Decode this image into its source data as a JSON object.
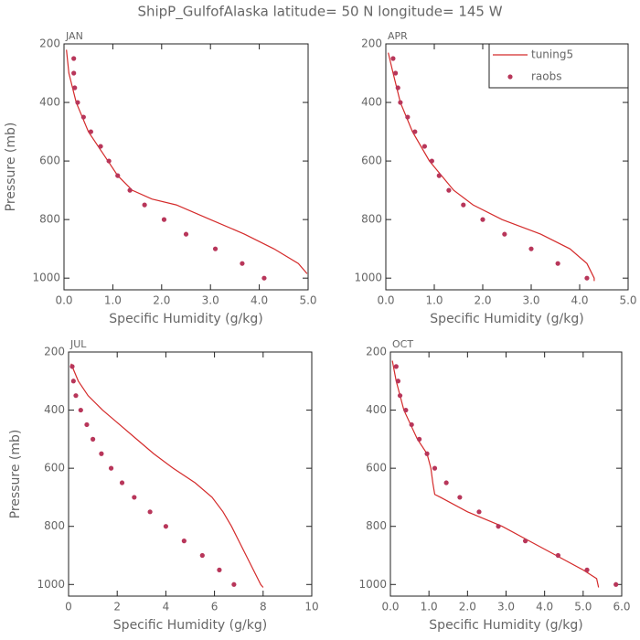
{
  "title": "ShipP_GulfofAlaska  latitude= 50 N longitude= 145 W",
  "chart_data": [
    {
      "type": "line",
      "title": "JAN",
      "xlabel": "Specific Humidity (g/kg)",
      "ylabel": "Pressure (mb)",
      "xlim": [
        0,
        5
      ],
      "xticks": [
        {
          "value": 0,
          "label": "0.0"
        },
        {
          "value": 1,
          "label": "1.0"
        },
        {
          "value": 2,
          "label": "2.0"
        },
        {
          "value": 3,
          "label": "3.0"
        },
        {
          "value": 4,
          "label": "4.0"
        },
        {
          "value": 5,
          "label": "5.0"
        }
      ],
      "ylim": [
        1040,
        200
      ],
      "yticks": [
        200,
        400,
        600,
        800,
        1000
      ],
      "series": [
        {
          "name": "tuning5",
          "kind": "line",
          "color": "#d42a2a",
          "x": [
            0.05,
            0.1,
            0.25,
            0.5,
            0.9,
            1.1,
            1.4,
            1.8,
            2.3,
            3.0,
            3.7,
            4.3,
            4.8,
            4.98
          ],
          "y": [
            220,
            300,
            400,
            500,
            600,
            650,
            700,
            730,
            750,
            800,
            850,
            900,
            950,
            985
          ]
        },
        {
          "name": "raobs",
          "kind": "scatter",
          "color": "#b8365a",
          "x": [
            0.2,
            0.2,
            0.22,
            0.28,
            0.4,
            0.55,
            0.75,
            0.92,
            1.1,
            1.35,
            1.65,
            2.05,
            2.5,
            3.1,
            3.65,
            4.1
          ],
          "y": [
            250,
            300,
            350,
            400,
            450,
            500,
            550,
            600,
            650,
            700,
            750,
            800,
            850,
            900,
            950,
            1000
          ]
        }
      ]
    },
    {
      "type": "line",
      "title": "APR",
      "xlabel": "Specific Humidity (g/kg)",
      "legend": "upper right",
      "xlim": [
        0,
        5
      ],
      "xticks": [
        {
          "value": 0,
          "label": "0.0"
        },
        {
          "value": 1,
          "label": "1.0"
        },
        {
          "value": 2,
          "label": "2.0"
        },
        {
          "value": 3,
          "label": "3.0"
        },
        {
          "value": 4,
          "label": "4.0"
        },
        {
          "value": 5,
          "label": "5.0"
        }
      ],
      "ylim": [
        1040,
        200
      ],
      "yticks": [
        200,
        400,
        600,
        800,
        1000
      ],
      "series": [
        {
          "name": "tuning5",
          "kind": "line",
          "color": "#d42a2a",
          "x": [
            0.05,
            0.15,
            0.3,
            0.55,
            0.9,
            1.4,
            1.8,
            2.4,
            3.2,
            3.8,
            4.15,
            4.3,
            4.3
          ],
          "y": [
            230,
            300,
            400,
            500,
            600,
            700,
            750,
            800,
            850,
            900,
            950,
            1000,
            1010
          ]
        },
        {
          "name": "raobs",
          "kind": "scatter",
          "color": "#b8365a",
          "x": [
            0.15,
            0.2,
            0.25,
            0.3,
            0.45,
            0.6,
            0.8,
            0.95,
            1.1,
            1.3,
            1.6,
            2.0,
            2.45,
            3.0,
            3.55,
            4.15
          ],
          "y": [
            250,
            300,
            350,
            400,
            450,
            500,
            550,
            600,
            650,
            700,
            750,
            800,
            850,
            900,
            950,
            1000
          ]
        }
      ]
    },
    {
      "type": "line",
      "title": "JUL",
      "xlabel": "Specific Humidity (g/kg)",
      "ylabel": "Pressure (mb)",
      "xlim": [
        0,
        10
      ],
      "xticks": [
        0,
        2,
        4,
        6,
        8,
        10
      ],
      "ylim": [
        1040,
        200
      ],
      "yticks": [
        200,
        400,
        600,
        800,
        1000
      ],
      "series": [
        {
          "name": "tuning5",
          "kind": "line",
          "color": "#d42a2a",
          "x": [
            0.1,
            0.4,
            0.8,
            1.4,
            2.1,
            2.8,
            3.5,
            4.3,
            5.2,
            5.9,
            6.35,
            6.7,
            7.0,
            7.3,
            7.6,
            7.9,
            8.0
          ],
          "y": [
            240,
            300,
            350,
            400,
            450,
            500,
            550,
            600,
            650,
            700,
            750,
            800,
            850,
            900,
            950,
            1000,
            1010
          ]
        },
        {
          "name": "raobs",
          "kind": "scatter",
          "color": "#b8365a",
          "x": [
            0.15,
            0.2,
            0.3,
            0.5,
            0.75,
            1.0,
            1.35,
            1.75,
            2.2,
            2.7,
            3.35,
            4.0,
            4.75,
            5.5,
            6.2,
            6.8
          ],
          "y": [
            250,
            300,
            350,
            400,
            450,
            500,
            550,
            600,
            650,
            700,
            750,
            800,
            850,
            900,
            950,
            1000
          ]
        }
      ]
    },
    {
      "type": "line",
      "title": "OCT",
      "xlabel": "Specific Humidity (g/kg)",
      "xlim": [
        0,
        6
      ],
      "xticks": [
        {
          "value": 0,
          "label": "0.0"
        },
        {
          "value": 1,
          "label": "1.0"
        },
        {
          "value": 2,
          "label": "2.0"
        },
        {
          "value": 3,
          "label": "3.0"
        },
        {
          "value": 4,
          "label": "4.0"
        },
        {
          "value": 5,
          "label": "5.0"
        },
        {
          "value": 6,
          "label": "6.0"
        }
      ],
      "ylim": [
        1040,
        200
      ],
      "yticks": [
        200,
        400,
        600,
        800,
        1000
      ],
      "series": [
        {
          "name": "tuning5",
          "kind": "line",
          "color": "#d42a2a",
          "x": [
            0.05,
            0.15,
            0.35,
            0.7,
            0.95,
            1.05,
            1.1,
            1.15,
            1.3,
            2.0,
            2.9,
            3.6,
            4.3,
            5.0,
            5.35,
            5.4
          ],
          "y": [
            230,
            300,
            400,
            500,
            550,
            600,
            650,
            690,
            700,
            750,
            800,
            850,
            900,
            950,
            980,
            1010
          ]
        },
        {
          "name": "raobs",
          "kind": "scatter",
          "color": "#b8365a",
          "x": [
            0.15,
            0.2,
            0.25,
            0.4,
            0.55,
            0.75,
            0.95,
            1.15,
            1.45,
            1.8,
            2.3,
            2.8,
            3.5,
            4.35,
            5.1,
            5.85
          ],
          "y": [
            250,
            300,
            350,
            400,
            450,
            500,
            550,
            600,
            650,
            700,
            750,
            800,
            850,
            900,
            950,
            1000
          ]
        }
      ]
    }
  ]
}
